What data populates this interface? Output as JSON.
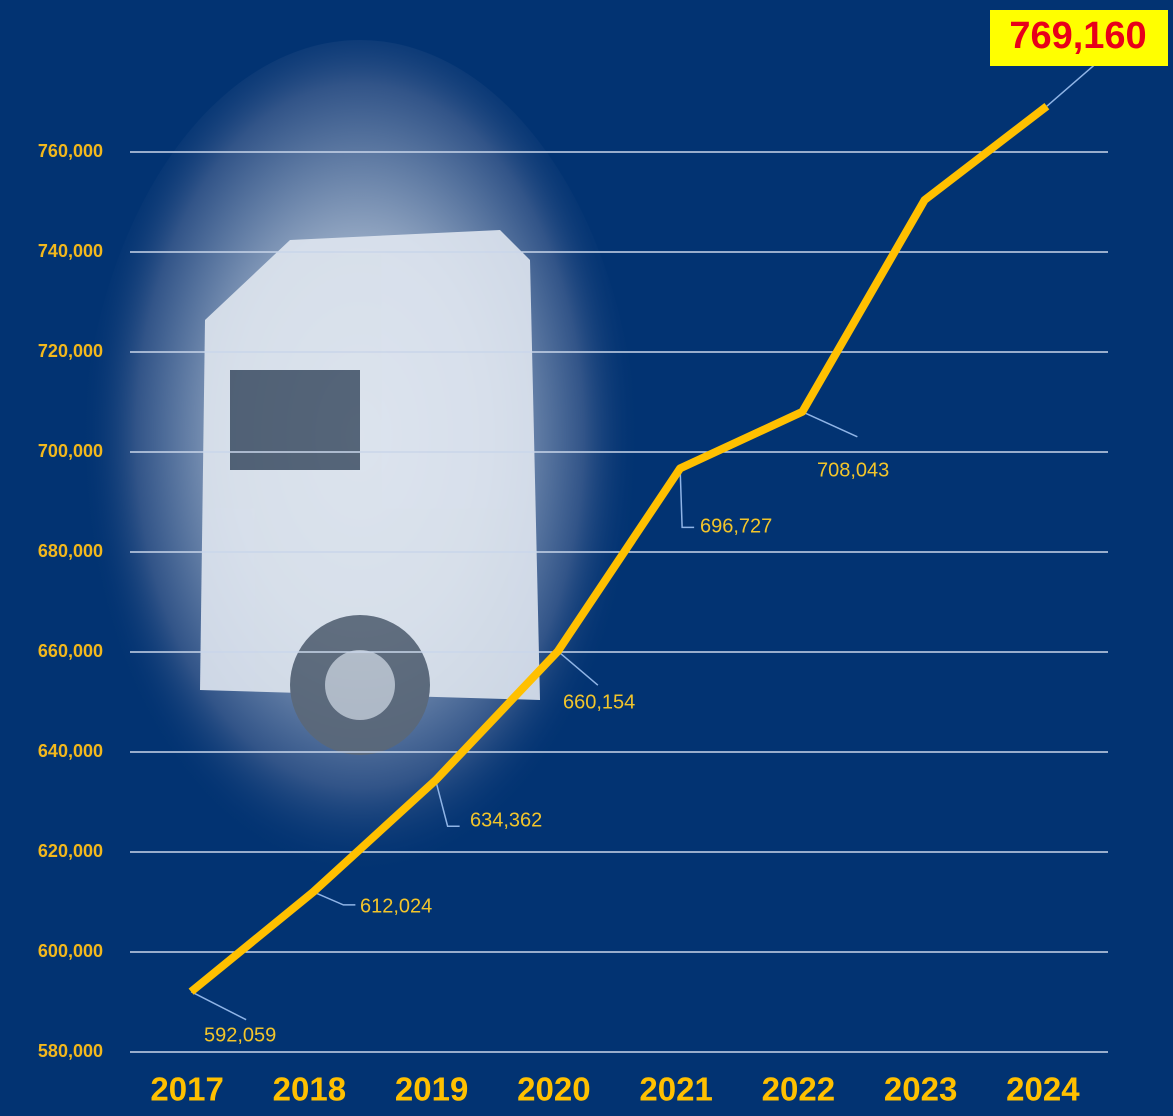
{
  "chart_data": {
    "type": "line",
    "categories": [
      "2017",
      "2018",
      "2019",
      "2020",
      "2021",
      "2022",
      "2023",
      "2024"
    ],
    "values": [
      592059,
      612024,
      634362,
      660154,
      696727,
      708043,
      750400,
      769160
    ],
    "value_labels": [
      "592,059",
      "612,024",
      "634,362",
      "660,154",
      "696,727",
      "708,043",
      null,
      "769,160"
    ],
    "color": "#ffc000",
    "ylim": [
      580000,
      780000
    ],
    "yticks": [
      {
        "value": 580000,
        "label": "580,000"
      },
      {
        "value": 600000,
        "label": "600,000"
      },
      {
        "value": 620000,
        "label": "620,000"
      },
      {
        "value": 640000,
        "label": "640,000"
      },
      {
        "value": 660000,
        "label": "660,000"
      },
      {
        "value": 680000,
        "label": "680,000"
      },
      {
        "value": 700000,
        "label": "700,000"
      },
      {
        "value": 720000,
        "label": "720,000"
      },
      {
        "value": 740000,
        "label": "740,000"
      },
      {
        "value": 760000,
        "label": "760,000"
      }
    ],
    "grid": true
  }
}
